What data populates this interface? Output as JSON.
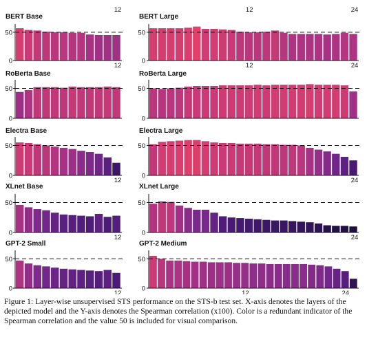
{
  "caption": "Figure 1: Layer-wise unsupervised STS performance on the STS-b test set. X-axis denotes the layers of the depicted model and the Y-axis denotes the Spearman correlation (x100). Color is a redundant indicator of the Spearman correlation and the value 50 is included for visual comparison.",
  "chart_data": [
    {
      "type": "bar",
      "title": "BERT Base",
      "xtick": "12",
      "xtick_position": "top",
      "yticks": [
        "0",
        "50"
      ],
      "ylim": [
        0,
        62
      ],
      "reference_line": 50,
      "values": [
        57,
        54,
        53,
        51,
        50,
        50,
        49,
        49,
        46,
        45,
        45,
        45
      ]
    },
    {
      "type": "bar",
      "title": "BERT Large",
      "xticks": [
        "12",
        "24"
      ],
      "xtick_position": "top",
      "yticks": [
        "0",
        "50"
      ],
      "ylim": [
        0,
        62
      ],
      "reference_line": 50,
      "values": [
        57,
        57,
        57,
        57,
        58,
        60,
        56,
        56,
        55,
        54,
        51,
        50,
        50,
        51,
        53,
        49,
        47,
        47,
        47,
        47,
        46,
        47,
        49,
        47
      ]
    },
    {
      "type": "bar",
      "title": "RoBerta Base",
      "xtick": "12",
      "xtick_position": "top",
      "yticks": [
        "0",
        "50"
      ],
      "ylim": [
        0,
        62
      ],
      "reference_line": 50,
      "values": [
        44,
        47,
        52,
        52,
        52,
        51,
        53,
        52,
        52,
        52,
        53,
        52
      ]
    },
    {
      "type": "bar",
      "title": "RoBerta Large",
      "xticks": [
        "12",
        "24"
      ],
      "xtick_position": "top",
      "yticks": [
        "0",
        "50"
      ],
      "ylim": [
        0,
        62
      ],
      "reference_line": 50,
      "values": [
        50,
        49,
        50,
        51,
        53,
        54,
        54,
        54,
        55,
        55,
        55,
        55,
        56,
        55,
        56,
        56,
        56,
        56,
        57,
        56,
        56,
        56,
        55,
        45
      ]
    },
    {
      "type": "bar",
      "title": "Electra Base",
      "xtick": "12",
      "xtick_position": "bottom",
      "yticks": [
        "0",
        "50"
      ],
      "ylim": [
        0,
        62
      ],
      "reference_line": 50,
      "values": [
        55,
        54,
        52,
        50,
        48,
        46,
        44,
        41,
        39,
        36,
        30,
        21
      ]
    },
    {
      "type": "bar",
      "title": "Electra Large",
      "xtick": "24",
      "xtick_position": "bottom",
      "yticks": [
        "0",
        "50"
      ],
      "ylim": [
        0,
        62
      ],
      "reference_line": 50,
      "values": [
        52,
        56,
        57,
        58,
        59,
        59,
        57,
        55,
        54,
        54,
        53,
        53,
        53,
        52,
        52,
        51,
        51,
        50,
        46,
        43,
        40,
        36,
        31,
        25
      ]
    },
    {
      "type": "bar",
      "title": "XLnet Base",
      "xtick": "12",
      "xtick_position": "bottom",
      "yticks": [
        "0",
        "50"
      ],
      "ylim": [
        0,
        62
      ],
      "reference_line": 50,
      "values": [
        46,
        42,
        39,
        37,
        33,
        30,
        29,
        28,
        27,
        31,
        26,
        28
      ]
    },
    {
      "type": "bar",
      "title": "XLnet Large",
      "xtick": "24",
      "xtick_position": "bottom",
      "yticks": [
        "0",
        "50"
      ],
      "ylim": [
        0,
        62
      ],
      "reference_line": 50,
      "values": [
        48,
        52,
        51,
        45,
        41,
        38,
        38,
        33,
        27,
        25,
        24,
        23,
        22,
        21,
        20,
        20,
        19,
        18,
        17,
        15,
        12,
        11,
        11,
        10
      ]
    },
    {
      "type": "bar",
      "title": "GPT-2 Small",
      "xtick": "12",
      "xtick_position": "bottom",
      "yticks": [
        "0",
        "50"
      ],
      "ylim": [
        0,
        62
      ],
      "reference_line": 50,
      "values": [
        47,
        42,
        39,
        37,
        35,
        33,
        32,
        31,
        30,
        29,
        31,
        26
      ]
    },
    {
      "type": "bar",
      "title": "GPT-2 Medium",
      "xticks": [
        "12",
        "24"
      ],
      "xtick_position": "bottom",
      "yticks": [
        "0",
        "50"
      ],
      "ylim": [
        0,
        62
      ],
      "reference_line": 50,
      "values": [
        55,
        50,
        47,
        47,
        46,
        45,
        45,
        44,
        44,
        44,
        43,
        43,
        42,
        42,
        41,
        41,
        41,
        41,
        41,
        40,
        39,
        37,
        33,
        29,
        16
      ]
    }
  ]
}
